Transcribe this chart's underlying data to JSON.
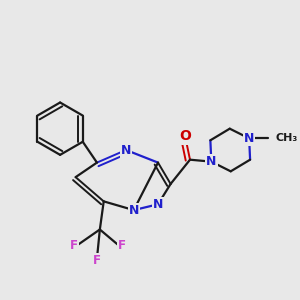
{
  "background_color": "#e8e8e8",
  "bond_color": "#1a1a1a",
  "bond_width": 1.6,
  "N_color": "#2020cc",
  "O_color": "#cc0000",
  "F_color": "#cc44cc",
  "figsize": [
    3.0,
    3.0
  ],
  "dpi": 100,
  "xlim": [
    0,
    300
  ],
  "ylim": [
    0,
    300
  ]
}
